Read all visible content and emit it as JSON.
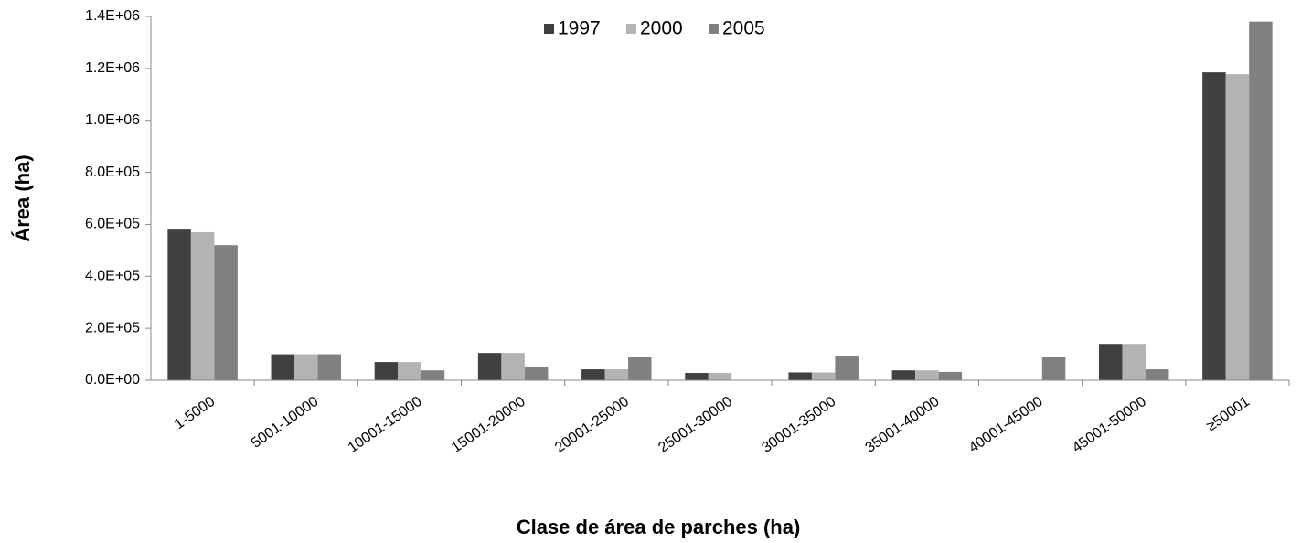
{
  "chart_data": {
    "type": "bar",
    "x_label": "Clase de área de parches (ha)",
    "y_label": "Área (ha)",
    "categories": [
      "1-5000",
      "5001-10000",
      "10001-15000",
      "15001-20000",
      "20001-25000",
      "25001-30000",
      "30001-35000",
      "35001-40000",
      "40001-45000",
      "45001-50000",
      "≥50001"
    ],
    "series": [
      {
        "name": "1997",
        "color": "#404040",
        "values": [
          580000,
          100000,
          70000,
          105000,
          42000,
          28000,
          30000,
          38000,
          0,
          140000,
          1185000
        ]
      },
      {
        "name": "2000",
        "color": "#b3b3b3",
        "values": [
          570000,
          100000,
          70000,
          105000,
          42000,
          28000,
          30000,
          38000,
          0,
          140000,
          1178000
        ]
      },
      {
        "name": "2005",
        "color": "#808080",
        "values": [
          520000,
          100000,
          38000,
          50000,
          88000,
          0,
          95000,
          32000,
          88000,
          42000,
          1380000
        ]
      }
    ],
    "ylim": [
      0,
      1400000
    ],
    "yticks": [
      {
        "value": 0,
        "label": "0.0E+00"
      },
      {
        "value": 200000,
        "label": "2.0E+05"
      },
      {
        "value": 400000,
        "label": "4.0E+05"
      },
      {
        "value": 600000,
        "label": "6.0E+05"
      },
      {
        "value": 800000,
        "label": "8.0E+05"
      },
      {
        "value": 1000000,
        "label": "1.0E+06"
      },
      {
        "value": 1200000,
        "label": "1.2E+06"
      },
      {
        "value": 1400000,
        "label": "1.4E+06"
      }
    ],
    "grid": false,
    "legend": "top"
  }
}
